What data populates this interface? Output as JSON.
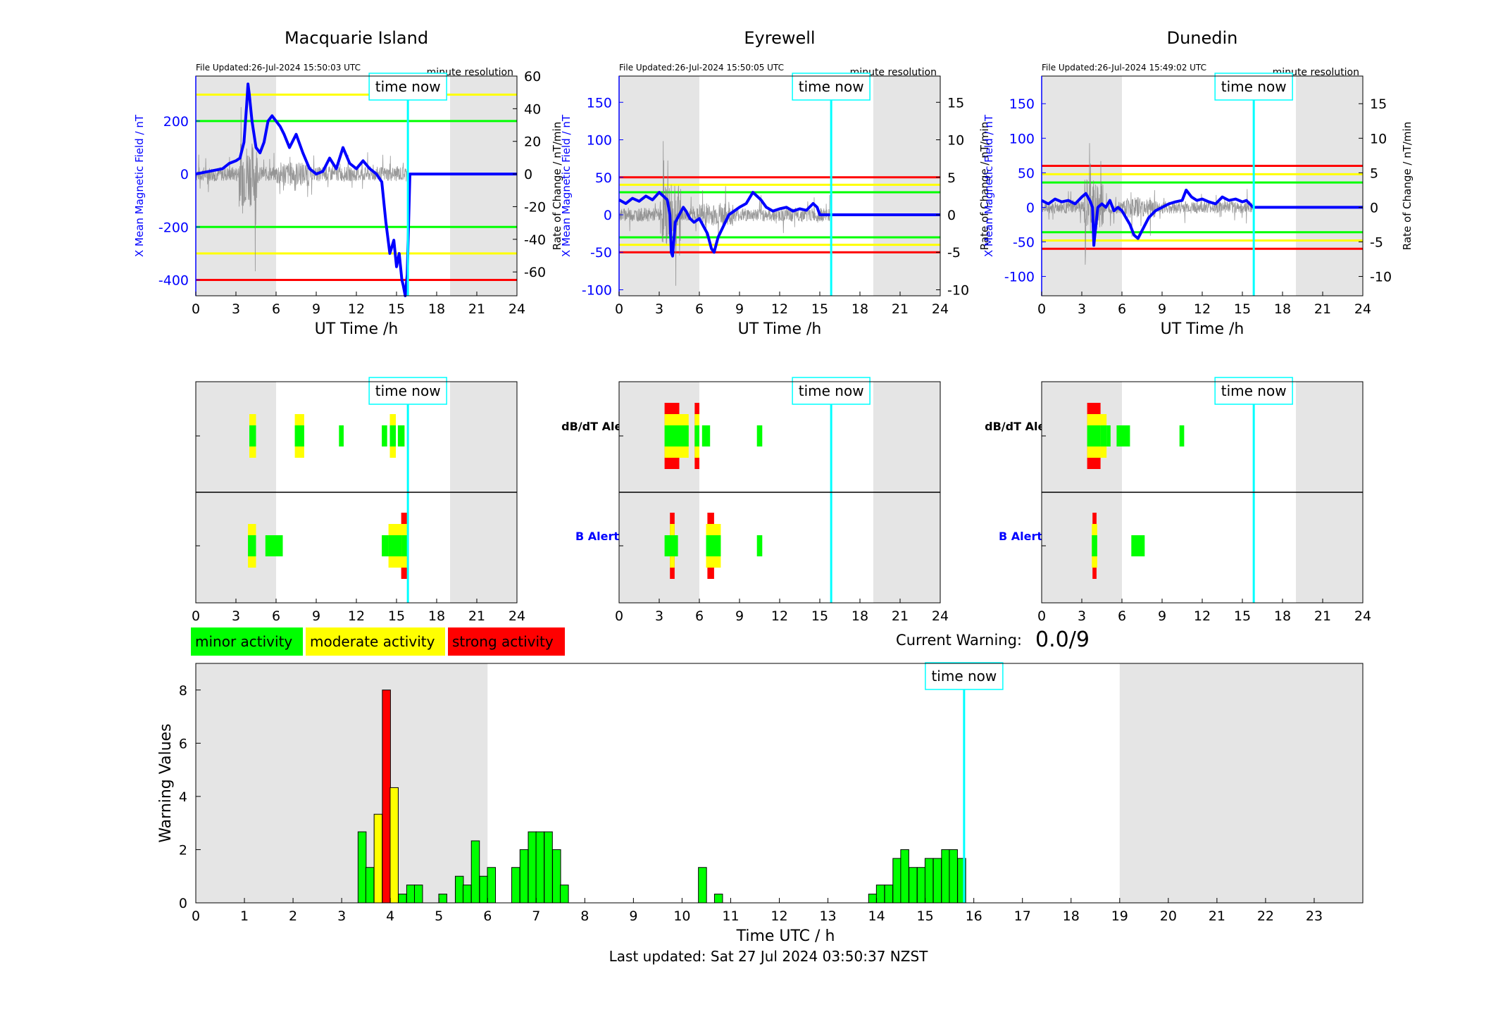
{
  "colors": {
    "minor": "#00ff00",
    "moderate": "#ffff00",
    "strong": "#ff0000",
    "field_line": "#0000ff",
    "rate_line": "#808080",
    "time_now_line": "#00ffff",
    "shade": "#e5e5e5"
  },
  "time_now_label": "time now",
  "rate_resolution_label": "minute resolution",
  "stations": [
    {
      "name": "Macquarie Island",
      "file_updated": "File Updated:26-Jul-2024 15:50:03 UTC",
      "ylabel_left": "X Mean Magnetic Field / nT",
      "ylabel_right": "Rate of Change / nT/min",
      "xlabel": "UT Time /h",
      "left_ylim": [
        -460,
        370
      ],
      "left_ticks": [
        -400,
        -200,
        0,
        200
      ],
      "right_ylim": [
        -74.6,
        60
      ],
      "right_ticks": [
        -60,
        -40,
        -20,
        0,
        20,
        40,
        60
      ],
      "x_ticks": [
        0,
        3,
        6,
        9,
        12,
        15,
        18,
        21,
        24
      ],
      "shade": [
        [
          0,
          6
        ],
        [
          19,
          24
        ]
      ],
      "time_now": 15.85,
      "thresholds": [
        {
          "value": 300,
          "level": "moderate"
        },
        {
          "value": 200,
          "level": "minor"
        },
        {
          "value": -200,
          "level": "minor"
        },
        {
          "value": -300,
          "level": "moderate"
        },
        {
          "value": -400,
          "level": "strong"
        }
      ],
      "field_series": {
        "x": [
          0,
          0.5,
          1,
          1.5,
          2,
          2.5,
          3,
          3.3,
          3.6,
          3.8,
          3.9,
          4.0,
          4.2,
          4.5,
          4.8,
          5.1,
          5.4,
          5.7,
          6.0,
          6.3,
          6.6,
          7.0,
          7.5,
          8.0,
          8.5,
          9.0,
          9.5,
          10.0,
          10.5,
          11.0,
          11.5,
          12.0,
          12.5,
          13.0,
          13.5,
          13.9,
          14.2,
          14.5,
          14.8,
          15.0,
          15.2,
          15.4,
          15.5,
          15.65,
          15.8,
          16,
          17,
          18,
          19,
          20,
          21,
          22,
          23,
          24
        ],
        "y": [
          0,
          5,
          10,
          15,
          20,
          40,
          50,
          60,
          120,
          260,
          340,
          300,
          200,
          100,
          80,
          120,
          200,
          220,
          200,
          180,
          150,
          100,
          150,
          80,
          20,
          0,
          10,
          60,
          20,
          100,
          40,
          20,
          50,
          20,
          0,
          -30,
          -180,
          -300,
          -250,
          -350,
          -300,
          -400,
          -420,
          -460,
          -380,
          0,
          0,
          0,
          0,
          0,
          0,
          0,
          0,
          0
        ]
      },
      "alerts": {
        "dbdt": [
          {
            "x": 4.0,
            "w": 0.5,
            "level": "moderate"
          },
          {
            "x": 7.4,
            "w": 0.7,
            "level": "moderate"
          },
          {
            "x": 10.7,
            "w": 0.35,
            "level": "minor"
          },
          {
            "x": 13.9,
            "w": 0.4,
            "level": "minor"
          },
          {
            "x": 14.5,
            "w": 0.45,
            "level": "moderate"
          },
          {
            "x": 15.1,
            "w": 0.5,
            "level": "minor"
          }
        ],
        "b": [
          {
            "x": 3.9,
            "w": 0.6,
            "level": "moderate"
          },
          {
            "x": 5.2,
            "w": 1.3,
            "level": "minor"
          },
          {
            "x": 13.9,
            "w": 0.5,
            "level": "minor"
          },
          {
            "x": 14.4,
            "w": 1.0,
            "level": "moderate"
          },
          {
            "x": 15.35,
            "w": 0.5,
            "level": "strong"
          }
        ]
      }
    },
    {
      "name": "Eyrewell",
      "file_updated": "File Updated:26-Jul-2024 15:50:05 UTC",
      "ylabel_left": "X Mean Magnetic Field / nT",
      "ylabel_right": "Rate of Change / nT/min",
      "xlabel": "UT Time /h",
      "left_ylim": [
        -108,
        185
      ],
      "left_ticks": [
        -100,
        -50,
        0,
        50,
        100,
        150
      ],
      "right_ylim": [
        -10.8,
        18.5
      ],
      "right_ticks": [
        -10,
        -5,
        0,
        5,
        10,
        15
      ],
      "x_ticks": [
        0,
        3,
        6,
        9,
        12,
        15,
        18,
        21,
        24
      ],
      "shade": [
        [
          0,
          6
        ],
        [
          19,
          24
        ]
      ],
      "time_now": 15.85,
      "thresholds": [
        {
          "value": 50,
          "level": "strong"
        },
        {
          "value": 40,
          "level": "moderate"
        },
        {
          "value": 30,
          "level": "minor"
        },
        {
          "value": -30,
          "level": "minor"
        },
        {
          "value": -40,
          "level": "moderate"
        },
        {
          "value": -50,
          "level": "strong"
        }
      ],
      "field_series": {
        "x": [
          0,
          0.5,
          1,
          1.5,
          2,
          2.5,
          3,
          3.3,
          3.6,
          3.8,
          3.9,
          4.0,
          4.2,
          4.5,
          4.8,
          5.0,
          5.3,
          5.6,
          6.0,
          6.3,
          6.6,
          6.9,
          7.1,
          7.4,
          7.8,
          8.2,
          8.6,
          9.0,
          9.5,
          10.0,
          10.3,
          10.6,
          11.0,
          11.5,
          12.0,
          12.5,
          13.0,
          13.5,
          14.0,
          14.5,
          14.8,
          15.0,
          15.3,
          15.8,
          16,
          17,
          18,
          19,
          20,
          21,
          22,
          23,
          24
        ],
        "y": [
          20,
          15,
          22,
          18,
          25,
          20,
          30,
          25,
          20,
          0,
          -50,
          -55,
          -10,
          0,
          10,
          5,
          -5,
          -10,
          -5,
          -15,
          -25,
          -45,
          -50,
          -30,
          -15,
          0,
          5,
          10,
          15,
          30,
          25,
          20,
          10,
          5,
          8,
          10,
          5,
          8,
          6,
          15,
          10,
          0,
          0,
          0,
          0,
          0,
          0,
          0,
          0,
          0,
          0,
          0,
          0
        ]
      },
      "alerts": {
        "dbdt": [
          {
            "x": 3.4,
            "w": 1.1,
            "level": "strong"
          },
          {
            "x": 4.5,
            "w": 0.7,
            "level": "moderate"
          },
          {
            "x": 5.65,
            "w": 0.35,
            "level": "strong"
          },
          {
            "x": 6.2,
            "w": 0.6,
            "level": "minor"
          },
          {
            "x": 10.3,
            "w": 0.4,
            "level": "minor"
          }
        ],
        "b": [
          {
            "x": 3.8,
            "w": 0.35,
            "level": "strong"
          },
          {
            "x": 3.4,
            "w": 1.0,
            "level": "minor"
          },
          {
            "x": 6.6,
            "w": 0.5,
            "level": "strong"
          },
          {
            "x": 6.5,
            "w": 1.1,
            "level": "moderate"
          },
          {
            "x": 10.3,
            "w": 0.4,
            "level": "minor"
          }
        ]
      }
    },
    {
      "name": "Dunedin",
      "file_updated": "File Updated:26-Jul-2024 15:49:02 UTC",
      "ylabel_left": "X Mean Magnetic Field / nT",
      "ylabel_right": "Rate of Change / nT/min",
      "xlabel": "UT Time /h",
      "left_ylim": [
        -128,
        190
      ],
      "left_ticks": [
        -100,
        -50,
        0,
        50,
        100,
        150
      ],
      "right_ylim": [
        -12.8,
        19
      ],
      "right_ticks": [
        -10,
        -5,
        0,
        5,
        10,
        15
      ],
      "x_ticks": [
        0,
        3,
        6,
        9,
        12,
        15,
        18,
        21,
        24
      ],
      "shade": [
        [
          0,
          6
        ],
        [
          19,
          24
        ]
      ],
      "time_now": 15.85,
      "thresholds": [
        {
          "value": 60,
          "level": "strong"
        },
        {
          "value": 48,
          "level": "moderate"
        },
        {
          "value": 36,
          "level": "minor"
        },
        {
          "value": -36,
          "level": "minor"
        },
        {
          "value": -48,
          "level": "moderate"
        },
        {
          "value": -60,
          "level": "strong"
        }
      ],
      "field_series": {
        "x": [
          0,
          0.5,
          1,
          1.5,
          2,
          2.5,
          3,
          3.3,
          3.6,
          3.8,
          3.9,
          4.0,
          4.2,
          4.5,
          4.8,
          5.1,
          5.4,
          5.7,
          6.0,
          6.3,
          6.6,
          6.9,
          7.2,
          7.6,
          8.0,
          8.5,
          9.0,
          9.5,
          10.0,
          10.5,
          10.8,
          11.2,
          11.6,
          12.0,
          12.5,
          13.0,
          13.5,
          14.0,
          14.5,
          15.0,
          15.3,
          15.8,
          16,
          17,
          18,
          19,
          20,
          21,
          22,
          23,
          24
        ],
        "y": [
          10,
          5,
          12,
          8,
          10,
          5,
          15,
          20,
          10,
          0,
          -55,
          -35,
          0,
          5,
          0,
          10,
          -5,
          0,
          -5,
          -15,
          -25,
          -40,
          -45,
          -30,
          -15,
          -5,
          0,
          5,
          8,
          10,
          25,
          15,
          10,
          12,
          8,
          5,
          15,
          10,
          12,
          8,
          10,
          0,
          0,
          0,
          0,
          0,
          0,
          0,
          0,
          0,
          0
        ]
      },
      "alerts": {
        "dbdt": [
          {
            "x": 3.4,
            "w": 1.0,
            "level": "strong"
          },
          {
            "x": 4.4,
            "w": 0.45,
            "level": "moderate"
          },
          {
            "x": 4.85,
            "w": 0.3,
            "level": "minor"
          },
          {
            "x": 5.6,
            "w": 1.0,
            "level": "minor"
          },
          {
            "x": 10.3,
            "w": 0.35,
            "level": "minor"
          }
        ],
        "b": [
          {
            "x": 3.8,
            "w": 0.3,
            "level": "strong"
          },
          {
            "x": 3.75,
            "w": 0.4,
            "level": "moderate"
          },
          {
            "x": 6.7,
            "w": 1.0,
            "level": "minor"
          }
        ]
      }
    }
  ],
  "alert_labels": {
    "dbdt": "dB/dT Alert",
    "b": "B Alert"
  },
  "alert_x_ticks": [
    0,
    3,
    6,
    9,
    12,
    15,
    18,
    21,
    24
  ],
  "legend": [
    {
      "label": "minor activity",
      "level": "minor"
    },
    {
      "label": "moderate activity",
      "level": "moderate"
    },
    {
      "label": "strong activity",
      "level": "strong"
    }
  ],
  "current_warning": {
    "label": "Current Warning:",
    "value": "0.0/9"
  },
  "chart_data": {
    "type": "bar",
    "xlabel": "Time UTC / h",
    "ylabel": "Warning Values",
    "xlim": [
      0,
      24
    ],
    "ylim": [
      0,
      9
    ],
    "x_ticks": [
      0,
      1,
      2,
      3,
      4,
      5,
      6,
      7,
      8,
      9,
      10,
      11,
      12,
      13,
      14,
      15,
      16,
      17,
      18,
      19,
      20,
      21,
      22,
      23
    ],
    "y_ticks": [
      0,
      2,
      4,
      6,
      8
    ],
    "shade": [
      [
        0,
        6
      ],
      [
        19,
        24
      ]
    ],
    "time_now": 15.8,
    "bar_width_h": 0.1667,
    "x": [
      3.42,
      3.58,
      3.75,
      3.92,
      4.08,
      4.25,
      4.42,
      4.58,
      5.08,
      5.42,
      5.58,
      5.75,
      5.92,
      6.08,
      6.58,
      6.75,
      6.92,
      7.08,
      7.25,
      7.42,
      7.58,
      10.42,
      10.75,
      13.92,
      14.08,
      14.25,
      14.42,
      14.58,
      14.75,
      14.92,
      15.08,
      15.25,
      15.42,
      15.58,
      15.75
    ],
    "values": [
      2.67,
      1.33,
      3.33,
      8.0,
      4.33,
      0.33,
      0.67,
      0.67,
      0.33,
      1.0,
      0.67,
      2.33,
      1.0,
      1.33,
      1.33,
      2.0,
      2.67,
      2.67,
      2.67,
      2.0,
      0.67,
      1.33,
      0.33,
      0.33,
      0.67,
      0.67,
      1.67,
      2.0,
      1.33,
      1.33,
      1.67,
      1.67,
      2.0,
      2.0,
      1.67
    ],
    "levels": [
      "minor",
      "minor",
      "moderate",
      "strong",
      "moderate",
      "minor",
      "minor",
      "minor",
      "minor",
      "minor",
      "minor",
      "minor",
      "minor",
      "minor",
      "minor",
      "minor",
      "minor",
      "minor",
      "minor",
      "minor",
      "minor",
      "minor",
      "minor",
      "minor",
      "minor",
      "minor",
      "minor",
      "minor",
      "minor",
      "minor",
      "minor",
      "minor",
      "minor",
      "minor",
      "minor"
    ]
  },
  "footer": "Last updated: Sat 27 Jul 2024 03:50:37 NZST"
}
